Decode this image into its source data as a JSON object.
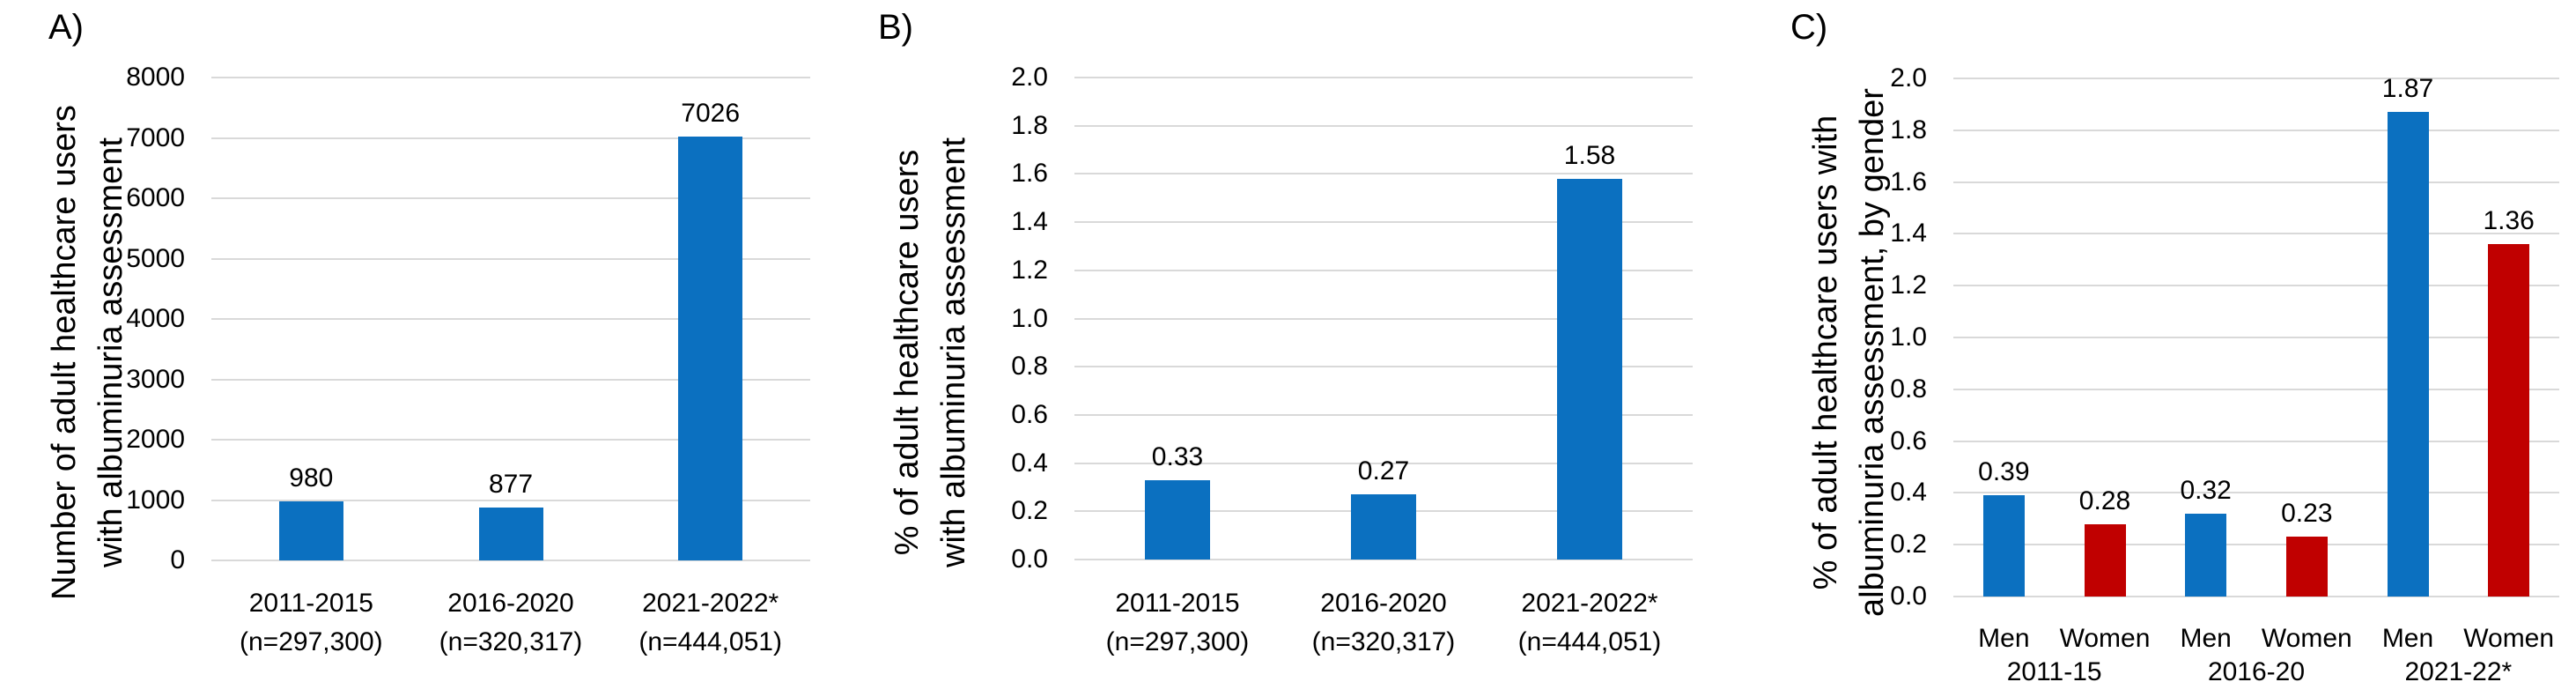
{
  "colors": {
    "blue": "#0B70C0",
    "red": "#C00000",
    "gridline": "#D9D9D9",
    "text": "#000000"
  },
  "chart_data": [
    {
      "type": "bar",
      "panel_label": "A)",
      "ylabel": "Number of adult healthcare users with albuminuria assessment",
      "ylabel_lines": [
        "Number of adult healthcare users",
        "with albuminuria assessment"
      ],
      "xlabel": "",
      "ylim": [
        0,
        8000
      ],
      "yticks": [
        "8000",
        "7000",
        "6000",
        "5000",
        "4000",
        "3000",
        "2000",
        "1000",
        "0"
      ],
      "grid": true,
      "legend": null,
      "bars": [
        {
          "category_lines": [
            "2011-2015",
            "(n=297,300)"
          ],
          "value": 980,
          "label": "980",
          "color_key": "blue"
        },
        {
          "category_lines": [
            "2016-2020",
            "(n=320,317)"
          ],
          "value": 877,
          "label": "877",
          "color_key": "blue"
        },
        {
          "category_lines": [
            "2021-2022*",
            "(n=444,051)"
          ],
          "value": 7026,
          "label": "7026",
          "color_key": "blue"
        }
      ]
    },
    {
      "type": "bar",
      "panel_label": "B)",
      "ylabel": "% of adult healthcare users with albuminuria assessment",
      "ylabel_lines": [
        "% of adult healthcare users",
        "with albuminuria assessment"
      ],
      "xlabel": "",
      "ylim": [
        0,
        2.0
      ],
      "yticks": [
        "2.0",
        "1.8",
        "1.6",
        "1.4",
        "1.2",
        "1.0",
        "0.8",
        "0.6",
        "0.4",
        "0.2",
        "0.0"
      ],
      "grid": true,
      "legend": null,
      "bars": [
        {
          "category_lines": [
            "2011-2015",
            "(n=297,300)"
          ],
          "value": 0.33,
          "label": "0.33",
          "color_key": "blue"
        },
        {
          "category_lines": [
            "2016-2020",
            "(n=320,317)"
          ],
          "value": 0.27,
          "label": "0.27",
          "color_key": "blue"
        },
        {
          "category_lines": [
            "2021-2022*",
            "(n=444,051)"
          ],
          "value": 1.58,
          "label": "1.58",
          "color_key": "blue"
        }
      ]
    },
    {
      "type": "bar",
      "panel_label": "C)",
      "ylabel": "% of adult healthcare users with albuminuria assessment, by gender",
      "ylabel_lines": [
        "% of adult healthcare users with",
        "albuminuria assessment, by gender"
      ],
      "xlabel": "",
      "ylim": [
        0,
        2.0
      ],
      "yticks": [
        "2.0",
        "1.8",
        "1.6",
        "1.4",
        "1.2",
        "1.0",
        "0.8",
        "0.6",
        "0.4",
        "0.2",
        "0.0"
      ],
      "grid": true,
      "legend": null,
      "bars": [
        {
          "category_lines": [
            "Men"
          ],
          "value": 0.39,
          "label": "0.39",
          "color_key": "blue"
        },
        {
          "category_lines": [
            "Women"
          ],
          "value": 0.28,
          "label": "0.28",
          "color_key": "red"
        },
        {
          "category_lines": [
            "Men"
          ],
          "value": 0.32,
          "label": "0.32",
          "color_key": "blue"
        },
        {
          "category_lines": [
            "Women"
          ],
          "value": 0.23,
          "label": "0.23",
          "color_key": "red"
        },
        {
          "category_lines": [
            "Men"
          ],
          "value": 1.87,
          "label": "1.87",
          "color_key": "blue"
        },
        {
          "category_lines": [
            "Women"
          ],
          "value": 1.36,
          "label": "1.36",
          "color_key": "red"
        }
      ],
      "group_labels": [
        {
          "text": "2011-15",
          "span": [
            0,
            1
          ]
        },
        {
          "text": "2016-20",
          "span": [
            2,
            3
          ]
        },
        {
          "text": "2021-22*",
          "span": [
            4,
            5
          ]
        }
      ]
    }
  ]
}
